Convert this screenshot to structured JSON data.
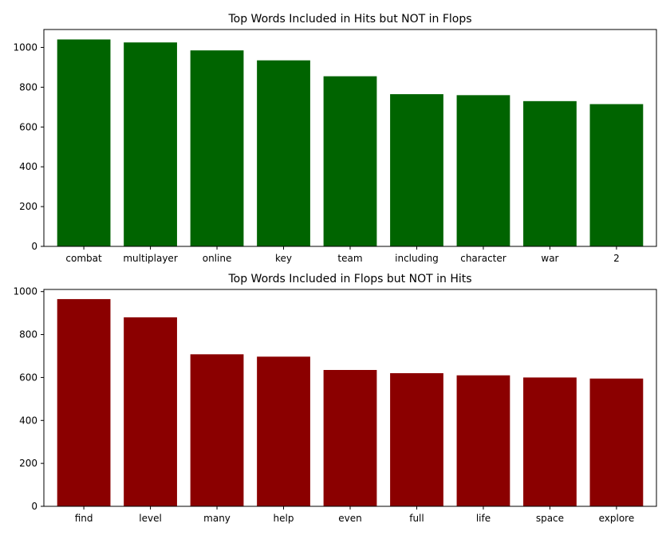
{
  "chart_data": [
    {
      "type": "bar",
      "title": "Top Words Included in Hits but NOT in Flops",
      "xlabel": "",
      "ylabel": "",
      "categories": [
        "combat",
        "multiplayer",
        "online",
        "key",
        "team",
        "including",
        "character",
        "war",
        "2"
      ],
      "values": [
        1040,
        1025,
        985,
        935,
        855,
        765,
        760,
        730,
        715
      ],
      "ylim": [
        0,
        1090
      ],
      "yticks": [
        0,
        200,
        400,
        600,
        800,
        1000
      ],
      "color": "#006400",
      "grid": false
    },
    {
      "type": "bar",
      "title": "Top Words Included in Flops but NOT in Hits",
      "xlabel": "",
      "ylabel": "",
      "categories": [
        "find",
        "level",
        "many",
        "help",
        "even",
        "full",
        "life",
        "space",
        "explore"
      ],
      "values": [
        965,
        880,
        708,
        697,
        635,
        620,
        610,
        600,
        595
      ],
      "ylim": [
        0,
        1010
      ],
      "yticks": [
        0,
        200,
        400,
        600,
        800,
        1000
      ],
      "color": "#8b0000",
      "grid": false
    }
  ]
}
